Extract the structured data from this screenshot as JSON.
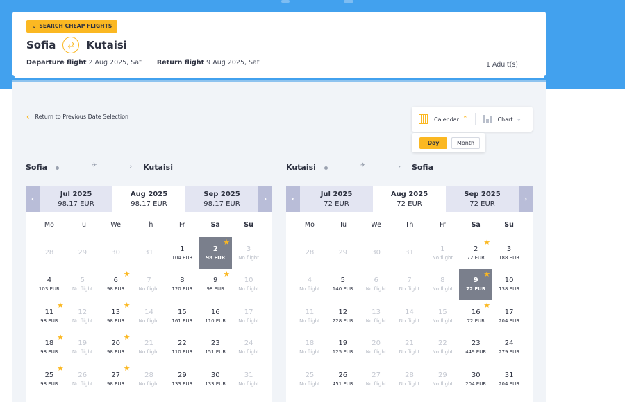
{
  "header": {
    "badge": "SEARCH CHEAP FLIGHTS",
    "origin": "Sofia",
    "destination": "Kutaisi",
    "departure_label": "Departure flight",
    "departure_value": "2 Aug 2025, Sat",
    "return_label": "Return flight",
    "return_value": "9 Aug 2025, Sat",
    "passengers": "1 Adult(s)"
  },
  "toolbar": {
    "back_label": "Return to Previous Date Selection",
    "calendar_label": "Calendar",
    "chart_label": "Chart",
    "day_label": "Day",
    "month_label": "Month"
  },
  "weekdays": [
    "Mo",
    "Tu",
    "We",
    "Th",
    "Fr",
    "Sa",
    "Su"
  ],
  "outbound": {
    "from": "Sofia",
    "to": "Kutaisi",
    "months": [
      {
        "name": "Jul 2025",
        "price": "98.17 EUR",
        "active": false
      },
      {
        "name": "Aug 2025",
        "price": "98.17 EUR",
        "active": true
      },
      {
        "name": "Sep 2025",
        "price": "98.17 EUR",
        "active": false
      }
    ],
    "days": [
      {
        "d": "28",
        "p": "",
        "state": "muted"
      },
      {
        "d": "29",
        "p": "",
        "state": "muted"
      },
      {
        "d": "30",
        "p": "",
        "state": "muted"
      },
      {
        "d": "31",
        "p": "",
        "state": "muted"
      },
      {
        "d": "1",
        "p": "104 EUR",
        "state": ""
      },
      {
        "d": "2",
        "p": "98 EUR",
        "state": "sel",
        "star": true
      },
      {
        "d": "3",
        "p": "No flight",
        "state": "nof"
      },
      {
        "d": "4",
        "p": "103 EUR",
        "state": ""
      },
      {
        "d": "5",
        "p": "No flight",
        "state": "nof"
      },
      {
        "d": "6",
        "p": "98 EUR",
        "state": "",
        "star": true
      },
      {
        "d": "7",
        "p": "No flight",
        "state": "nof"
      },
      {
        "d": "8",
        "p": "120 EUR",
        "state": ""
      },
      {
        "d": "9",
        "p": "98 EUR",
        "state": "",
        "star": true
      },
      {
        "d": "10",
        "p": "No flight",
        "state": "nof"
      },
      {
        "d": "11",
        "p": "98 EUR",
        "state": "",
        "star": true
      },
      {
        "d": "12",
        "p": "No flight",
        "state": "nof"
      },
      {
        "d": "13",
        "p": "98 EUR",
        "state": "",
        "star": true
      },
      {
        "d": "14",
        "p": "No flight",
        "state": "nof"
      },
      {
        "d": "15",
        "p": "161 EUR",
        "state": ""
      },
      {
        "d": "16",
        "p": "110 EUR",
        "state": ""
      },
      {
        "d": "17",
        "p": "No flight",
        "state": "nof"
      },
      {
        "d": "18",
        "p": "98 EUR",
        "state": "",
        "star": true
      },
      {
        "d": "19",
        "p": "No flight",
        "state": "nof"
      },
      {
        "d": "20",
        "p": "98 EUR",
        "state": "",
        "star": true
      },
      {
        "d": "21",
        "p": "No flight",
        "state": "nof"
      },
      {
        "d": "22",
        "p": "110 EUR",
        "state": ""
      },
      {
        "d": "23",
        "p": "151 EUR",
        "state": ""
      },
      {
        "d": "24",
        "p": "No flight",
        "state": "nof"
      },
      {
        "d": "25",
        "p": "98 EUR",
        "state": "",
        "star": true
      },
      {
        "d": "26",
        "p": "No flight",
        "state": "nof"
      },
      {
        "d": "27",
        "p": "98 EUR",
        "state": "",
        "star": true
      },
      {
        "d": "28",
        "p": "No flight",
        "state": "nof"
      },
      {
        "d": "29",
        "p": "133 EUR",
        "state": ""
      },
      {
        "d": "30",
        "p": "133 EUR",
        "state": ""
      },
      {
        "d": "31",
        "p": "No flight",
        "state": "nof"
      }
    ]
  },
  "return": {
    "from": "Kutaisi",
    "to": "Sofia",
    "months": [
      {
        "name": "Jul 2025",
        "price": "72 EUR",
        "active": false
      },
      {
        "name": "Aug 2025",
        "price": "72 EUR",
        "active": true
      },
      {
        "name": "Sep 2025",
        "price": "72 EUR",
        "active": false
      }
    ],
    "days": [
      {
        "d": "28",
        "p": "",
        "state": "muted"
      },
      {
        "d": "29",
        "p": "",
        "state": "muted"
      },
      {
        "d": "30",
        "p": "",
        "state": "muted"
      },
      {
        "d": "31",
        "p": "",
        "state": "muted"
      },
      {
        "d": "1",
        "p": "No flight",
        "state": "nof"
      },
      {
        "d": "2",
        "p": "72 EUR",
        "state": "",
        "star": true
      },
      {
        "d": "3",
        "p": "188 EUR",
        "state": ""
      },
      {
        "d": "4",
        "p": "No flight",
        "state": "nof"
      },
      {
        "d": "5",
        "p": "140 EUR",
        "state": ""
      },
      {
        "d": "6",
        "p": "No flight",
        "state": "nof"
      },
      {
        "d": "7",
        "p": "No flight",
        "state": "nof"
      },
      {
        "d": "8",
        "p": "No flight",
        "state": "nof"
      },
      {
        "d": "9",
        "p": "72 EUR",
        "state": "sel",
        "star": true
      },
      {
        "d": "10",
        "p": "138 EUR",
        "state": ""
      },
      {
        "d": "11",
        "p": "No flight",
        "state": "nof"
      },
      {
        "d": "12",
        "p": "228 EUR",
        "state": ""
      },
      {
        "d": "13",
        "p": "No flight",
        "state": "nof"
      },
      {
        "d": "14",
        "p": "No flight",
        "state": "nof"
      },
      {
        "d": "15",
        "p": "No flight",
        "state": "nof"
      },
      {
        "d": "16",
        "p": "72 EUR",
        "state": "",
        "star": true
      },
      {
        "d": "17",
        "p": "204 EUR",
        "state": ""
      },
      {
        "d": "18",
        "p": "No flight",
        "state": "nof"
      },
      {
        "d": "19",
        "p": "125 EUR",
        "state": ""
      },
      {
        "d": "20",
        "p": "No flight",
        "state": "nof"
      },
      {
        "d": "21",
        "p": "No flight",
        "state": "nof"
      },
      {
        "d": "22",
        "p": "No flight",
        "state": "nof"
      },
      {
        "d": "23",
        "p": "449 EUR",
        "state": ""
      },
      {
        "d": "24",
        "p": "279 EUR",
        "state": ""
      },
      {
        "d": "25",
        "p": "No flight",
        "state": "nof"
      },
      {
        "d": "26",
        "p": "451 EUR",
        "state": ""
      },
      {
        "d": "27",
        "p": "No flight",
        "state": "nof"
      },
      {
        "d": "28",
        "p": "No flight",
        "state": "nof"
      },
      {
        "d": "29",
        "p": "No flight",
        "state": "nof"
      },
      {
        "d": "30",
        "p": "204 EUR",
        "state": ""
      },
      {
        "d": "31",
        "p": "204 EUR",
        "state": ""
      }
    ]
  },
  "colors": {
    "accent": "#fbb822",
    "header_blue": "#42a1ee",
    "selected_day": "#7a7f8c"
  }
}
